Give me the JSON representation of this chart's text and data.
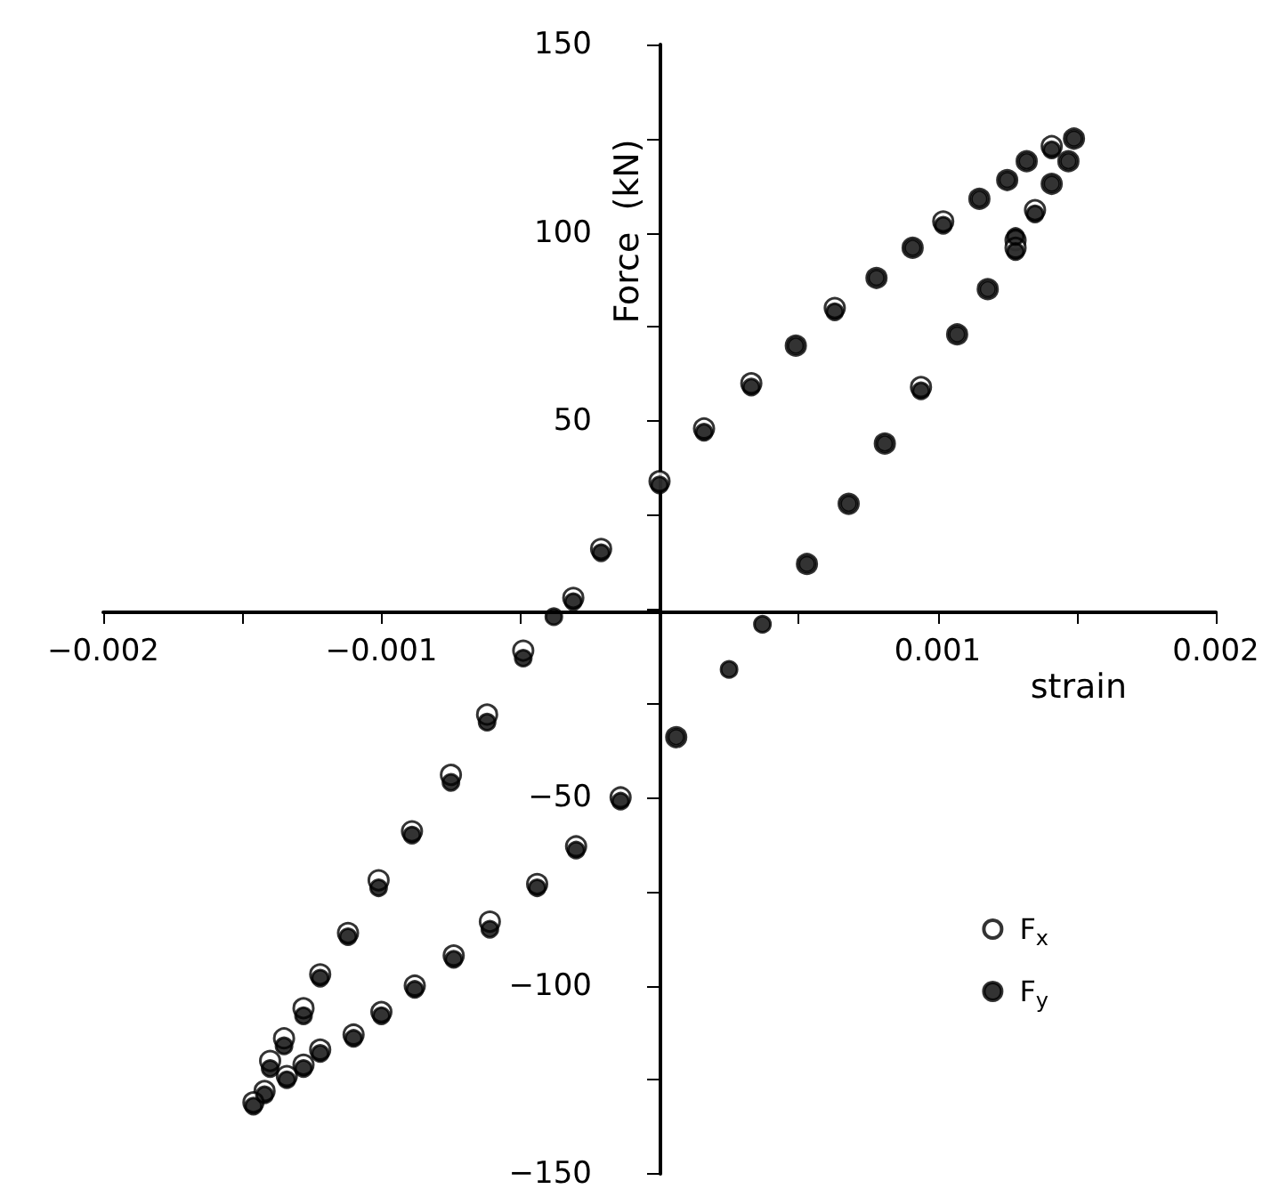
{
  "chart_data": {
    "type": "scatter",
    "xlabel": "strain",
    "ylabel": "Force  (kN)",
    "marker": "circle",
    "legend": "bottom right",
    "xlim": [
      -0.002,
      0.002
    ],
    "ylim": [
      -150,
      150
    ],
    "xticks": [
      -0.002,
      {
        "value": -0.0015,
        "label": null
      },
      -0.001,
      {
        "value": -0.0005,
        "label": null
      },
      {
        "value": 0,
        "label": null
      },
      {
        "value": 0.0005,
        "label": null
      },
      0.001,
      {
        "value": 0.0015,
        "label": null
      },
      0.002
    ],
    "yticks": [
      -150,
      {
        "value": -125,
        "label": null
      },
      -100,
      {
        "value": -75,
        "label": null
      },
      -50,
      {
        "value": -25,
        "label": null
      },
      {
        "value": 0,
        "label": null
      },
      {
        "value": 25,
        "label": null
      },
      50,
      {
        "value": 75,
        "label": null
      },
      100,
      {
        "value": 125,
        "label": null
      },
      150
    ],
    "x": [
      0,
      0.00016,
      0.00033,
      0.00049,
      0.00063,
      0.00078,
      0.00091,
      0.00102,
      0.00115,
      0.00125,
      0.00132,
      0.00141,
      0.00149,
      0.00147,
      0.00141,
      0.00135,
      0.00128,
      0.00128,
      0.00118,
      0.00107,
      0.00094,
      0.00081,
      0.00068,
      0.00053,
      0.00037,
      0.00025,
      6e-05,
      -0.00014,
      -0.0003,
      -0.00044,
      -0.00061,
      -0.00074,
      -0.00088,
      -0.001,
      -0.0011,
      -0.00122,
      -0.00128,
      -0.00134,
      -0.00142,
      -0.00146,
      -0.0014,
      -0.00135,
      -0.00128,
      -0.00122,
      -0.00112,
      -0.00101,
      -0.00089,
      -0.00075,
      -0.00062,
      -0.00049,
      -0.00038,
      -0.00031,
      -0.00021
    ],
    "series": [
      {
        "name": "F$_{x}$",
        "color": "#000000",
        "values": [
          34,
          48,
          60,
          70,
          80,
          88,
          96,
          103,
          109,
          114,
          119,
          123,
          125,
          119,
          113,
          106,
          98,
          96,
          85,
          73,
          59,
          44,
          28,
          12,
          null,
          null,
          -34,
          -50,
          -63,
          -73,
          -83,
          -92,
          -100,
          -107,
          -113,
          -117,
          -121,
          -124,
          -128,
          -131,
          -120,
          -114,
          -106,
          -97,
          -86,
          -72,
          -59,
          -44,
          -28,
          -11,
          null,
          3,
          16
        ]
      },
      {
        "name": "F$_{y}$",
        "color": "#000000",
        "values": [
          33,
          47,
          59,
          70,
          79,
          88,
          96,
          102,
          109,
          114,
          119,
          122,
          125,
          119,
          113,
          105,
          99,
          95,
          85,
          73,
          58,
          44,
          28,
          12,
          -4,
          -16,
          -34,
          -51,
          -64,
          -74,
          -85,
          -93,
          -101,
          -108,
          -114,
          -118,
          -122,
          -125,
          -129,
          -132,
          -122,
          -116,
          -108,
          -98,
          -87,
          -74,
          -60,
          -46,
          -30,
          -13,
          -2,
          2,
          15
        ]
      }
    ]
  }
}
